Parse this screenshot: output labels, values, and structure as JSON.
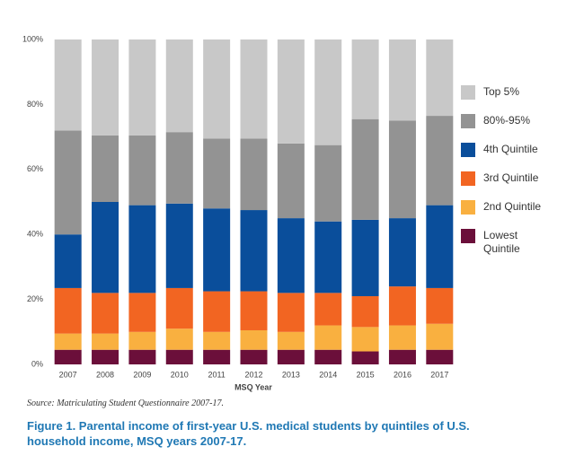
{
  "chart_data": {
    "type": "stacked_bar",
    "x_label": "MSQ Year",
    "source": "Source: Matriculating Student Questionnaire 2007-17.",
    "caption": "Figure 1. Parental income of first-year U.S. medical students by quintiles of U.S. household income, MSQ years 2007-17.",
    "categories": [
      "2007",
      "2008",
      "2009",
      "2010",
      "2011",
      "2012",
      "2013",
      "2014",
      "2015",
      "2016",
      "2017"
    ],
    "series": [
      {
        "name": "Lowest Quintile",
        "color": "#6b0f3a",
        "values": [
          4.5,
          4.5,
          4.5,
          4.5,
          4.5,
          4.5,
          4.5,
          4.5,
          4,
          4.5,
          4.5
        ]
      },
      {
        "name": "2nd Quintile",
        "color": "#f9b040",
        "values": [
          5,
          5,
          5.5,
          6.5,
          5.5,
          6,
          5.5,
          7.5,
          7.5,
          7.5,
          8
        ]
      },
      {
        "name": "3rd Quintile",
        "color": "#f26522",
        "values": [
          14,
          12.5,
          12,
          12.5,
          12.5,
          12,
          12,
          10,
          9.5,
          12,
          11
        ]
      },
      {
        "name": "4th Quintile",
        "color": "#0a4e9b",
        "values": [
          16.5,
          28,
          27,
          26,
          25.5,
          25,
          23,
          22,
          23.5,
          21,
          25.5
        ]
      },
      {
        "name": "80%-95%",
        "color": "#939393",
        "values": [
          32,
          20.5,
          21.5,
          22,
          21.5,
          22,
          23,
          23.5,
          31,
          30,
          27.5
        ]
      },
      {
        "name": "Top 5%",
        "color": "#c8c8c8",
        "values": [
          28,
          29.5,
          29.5,
          28.5,
          30.5,
          30.5,
          32,
          32.5,
          24.5,
          25,
          23.5
        ]
      }
    ],
    "ylim": [
      0,
      100
    ],
    "yticks": [
      {
        "value": 0,
        "label": "0%"
      },
      {
        "value": 20,
        "label": "20%"
      },
      {
        "value": 40,
        "label": "40%"
      },
      {
        "value": 60,
        "label": "60%"
      },
      {
        "value": 80,
        "label": "80%"
      },
      {
        "value": 100,
        "label": "100%"
      }
    ],
    "legend": "right"
  }
}
